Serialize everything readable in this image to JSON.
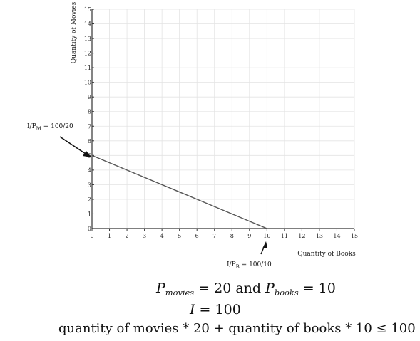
{
  "chart_data": {
    "type": "line",
    "xlabel": "Quantity of Books",
    "ylabel": "Quantity of Movies",
    "xlim": [
      0,
      15
    ],
    "ylim": [
      0,
      15
    ],
    "xticks": [
      "0",
      "1",
      "2",
      "3",
      "4",
      "5",
      "6",
      "7",
      "8",
      "9",
      "10",
      "11",
      "12",
      "13",
      "14",
      "15"
    ],
    "yticks": [
      "0",
      "1",
      "2",
      "3",
      "4",
      "5",
      "6",
      "7",
      "8",
      "9",
      "10",
      "11",
      "12",
      "13",
      "14",
      "15"
    ],
    "grid": true,
    "series": [
      {
        "x": [
          0,
          10
        ],
        "y": [
          5,
          0
        ]
      }
    ],
    "annotations": {
      "y_intercept": {
        "prefix": "I/P",
        "sub": "M",
        "suffix": " = 100/20"
      },
      "x_intercept": {
        "prefix": "I/P",
        "sub": "B",
        "suffix": " = 100/10"
      }
    }
  },
  "equations": {
    "line1": {
      "p": "P",
      "sub1": "movies",
      "mid": " = 20  and  ",
      "p2": "P",
      "sub2": "books",
      "end": " = 10"
    },
    "line2": {
      "i": "I",
      "rest": " = 100"
    },
    "line3": "quantity  of  movies * 20 + quantity  of  books * 10 ≤ 100"
  }
}
